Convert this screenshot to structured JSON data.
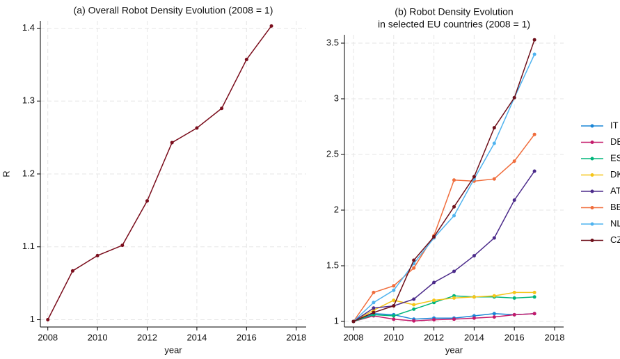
{
  "chart_data": [
    {
      "type": "line",
      "title": [
        "(a) Overall Robot Density Evolution (2008 = 1)"
      ],
      "x": [
        2008,
        2009,
        2010,
        2011,
        2012,
        2013,
        2014,
        2015,
        2016,
        2017
      ],
      "series": [
        {
          "name": "R",
          "color": "#7a0d1c",
          "values": [
            1,
            1.067,
            1.088,
            1.102,
            1.163,
            1.243,
            1.263,
            1.29,
            1.357,
            1.403
          ]
        }
      ],
      "xlabel": "year",
      "ylabel": "R",
      "xlim": [
        2007.7,
        2018.4
      ],
      "xticks": [
        2008,
        2010,
        2012,
        2014,
        2016,
        2018
      ],
      "ylim": [
        0.99,
        1.41
      ],
      "yticks": [
        1,
        1.1,
        1.2,
        1.3,
        1.4
      ],
      "grid": true
    },
    {
      "type": "line",
      "title": [
        "(b) Robot Density Evolution",
        "in selected EU countries (2008 = 1)"
      ],
      "x": [
        2008,
        2009,
        2010,
        2011,
        2012,
        2013,
        2014,
        2015,
        2016,
        2017
      ],
      "series": [
        {
          "name": "IT",
          "color": "#1a85d6",
          "values": [
            1,
            1.07,
            1.06,
            1.02,
            1.03,
            1.03,
            1.05,
            1.07,
            1.06,
            1.07
          ]
        },
        {
          "name": "DE",
          "color": "#c41a6b",
          "values": [
            1,
            1.05,
            1.02,
            1.005,
            1.015,
            1.02,
            1.03,
            1.04,
            1.06,
            1.07
          ]
        },
        {
          "name": "ES",
          "color": "#00b57a",
          "values": [
            1,
            1.06,
            1.05,
            1.11,
            1.17,
            1.23,
            1.22,
            1.22,
            1.21,
            1.22
          ]
        },
        {
          "name": "DK",
          "color": "#f5c518",
          "values": [
            1,
            1.1,
            1.19,
            1.15,
            1.19,
            1.21,
            1.22,
            1.23,
            1.26,
            1.26
          ]
        },
        {
          "name": "AT",
          "color": "#4b2a8a",
          "values": [
            1,
            1.12,
            1.14,
            1.2,
            1.35,
            1.45,
            1.59,
            1.75,
            2.09,
            2.35
          ]
        },
        {
          "name": "BE",
          "color": "#f06d3c",
          "values": [
            1,
            1.26,
            1.32,
            1.48,
            1.77,
            2.27,
            2.26,
            2.28,
            2.44,
            2.68
          ]
        },
        {
          "name": "NL",
          "color": "#4fb3ef",
          "values": [
            1,
            1.17,
            1.28,
            1.52,
            1.75,
            1.95,
            2.28,
            2.6,
            3.01,
            3.4
          ]
        },
        {
          "name": "CZ",
          "color": "#6e0f1a",
          "values": [
            1,
            1.08,
            1.14,
            1.55,
            1.76,
            2.03,
            2.3,
            2.74,
            3.01,
            3.53
          ]
        }
      ],
      "xlabel": "year",
      "xlim": [
        2007.55,
        2018.45
      ],
      "xticks": [
        2008,
        2010,
        2012,
        2014,
        2016,
        2018
      ],
      "ylim": [
        0.95,
        3.575
      ],
      "yticks": [
        1,
        1.5,
        2,
        2.5,
        3,
        3.5
      ],
      "grid": true,
      "legend": "right"
    }
  ]
}
